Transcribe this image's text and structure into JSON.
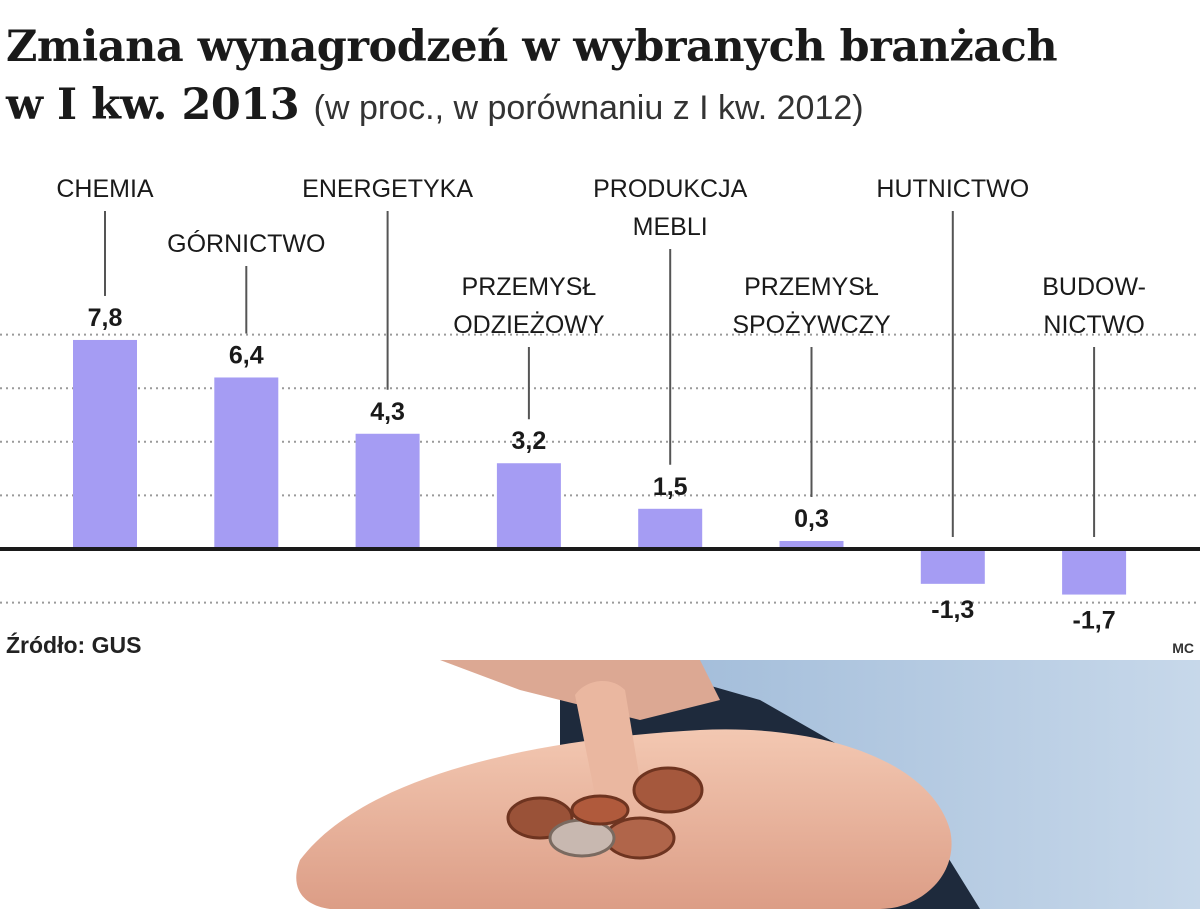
{
  "title": {
    "line1": "Zmiana wynagrodzeń w wybranych branżach",
    "line2": "w I kw. 2013",
    "subtitle": "(w proc., w porównaniu z I kw. 2012)"
  },
  "source": "Źródło: GUS",
  "credit": "MC",
  "colors": {
    "bar": "#a59cf3",
    "axis": "#1a1a1a",
    "grid": "#9a9a9a",
    "leader": "#555555"
  },
  "chart_data": {
    "type": "bar",
    "categories": [
      "CHEMIA",
      "GÓRNICTWO",
      "ENERGETYKA",
      "PRZEMYSŁ ODZIEŻOWY",
      "PRODUKCJA MEBLI",
      "PRZEMYSŁ SPOŻYWCZY",
      "HUTNICTWO",
      "BUDOW-NICTWO"
    ],
    "category_lines": [
      [
        "CHEMIA"
      ],
      [
        "GÓRNICTWO"
      ],
      [
        "ENERGETYKA"
      ],
      [
        "PRZEMYSŁ",
        "ODZIEŻOWY"
      ],
      [
        "PRODUKCJA",
        "MEBLI"
      ],
      [
        "PRZEMYSŁ",
        "SPOŻYWCZY"
      ],
      [
        "HUTNICTWO"
      ],
      [
        "BUDOW-",
        "NICTWO"
      ]
    ],
    "values": [
      7.8,
      6.4,
      4.3,
      3.2,
      1.5,
      0.3,
      -1.3,
      -1.7
    ],
    "value_labels": [
      "7,8",
      "6,4",
      "4,3",
      "3,2",
      "1,5",
      "0,3",
      "-1,3",
      "-1,7"
    ],
    "ylim": [
      -2,
      8
    ],
    "grid": true,
    "legend": "none"
  }
}
